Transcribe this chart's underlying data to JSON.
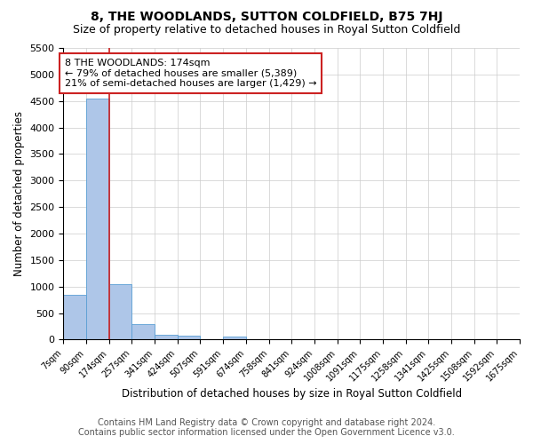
{
  "title": "8, THE WOODLANDS, SUTTON COLDFIELD, B75 7HJ",
  "subtitle": "Size of property relative to detached houses in Royal Sutton Coldfield",
  "xlabel": "Distribution of detached houses by size in Royal Sutton Coldfield",
  "ylabel": "Number of detached properties",
  "footer_line1": "Contains HM Land Registry data © Crown copyright and database right 2024.",
  "footer_line2": "Contains public sector information licensed under the Open Government Licence v3.0.",
  "annotation_line1": "8 THE WOODLANDS: 174sqm",
  "annotation_line2": "← 79% of detached houses are smaller (5,389)",
  "annotation_line3": "21% of semi-detached houses are larger (1,429) →",
  "property_size": 174,
  "bin_labels": [
    "7sqm",
    "90sqm",
    "174sqm",
    "257sqm",
    "341sqm",
    "424sqm",
    "507sqm",
    "591sqm",
    "674sqm",
    "758sqm",
    "841sqm",
    "924sqm",
    "1008sqm",
    "1091sqm",
    "1175sqm",
    "1258sqm",
    "1341sqm",
    "1425sqm",
    "1508sqm",
    "1592sqm",
    "1675sqm"
  ],
  "bin_edges": [
    7,
    90,
    174,
    257,
    341,
    424,
    507,
    591,
    674,
    758,
    841,
    924,
    1008,
    1091,
    1175,
    1258,
    1341,
    1425,
    1508,
    1592,
    1675
  ],
  "bar_heights": [
    850,
    4550,
    1050,
    290,
    95,
    80,
    0,
    65,
    0,
    0,
    0,
    0,
    0,
    0,
    0,
    0,
    0,
    0,
    0,
    0
  ],
  "bar_color": "#aec6e8",
  "bar_edge_color": "#5a9fd4",
  "highlight_color": "#cc2222",
  "ylim": [
    0,
    5500
  ],
  "yticks": [
    0,
    500,
    1000,
    1500,
    2000,
    2500,
    3000,
    3500,
    4000,
    4500,
    5000,
    5500
  ],
  "title_fontsize": 10,
  "subtitle_fontsize": 9,
  "annotation_fontsize": 8,
  "footer_fontsize": 7,
  "xlabel_fontsize": 8.5,
  "ylabel_fontsize": 8.5,
  "background_color": "#ffffff",
  "grid_color": "#cccccc"
}
